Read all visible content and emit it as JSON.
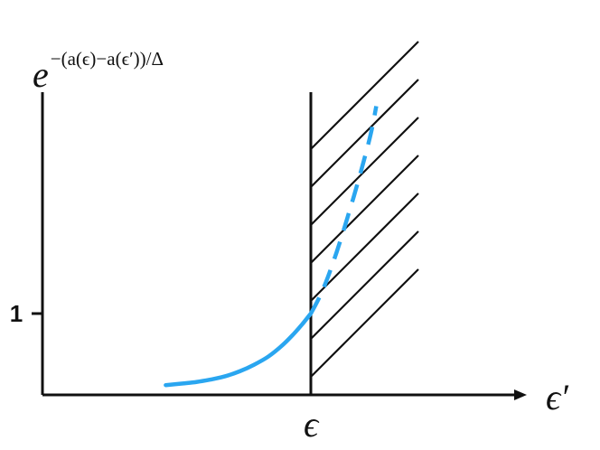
{
  "chart_data": {
    "type": "line",
    "title": "",
    "xlabel": "ϵ′",
    "ylabel_base": "e",
    "ylabel_exponent": "−(a(ϵ)−a(ϵ′))/Δ",
    "x_marker_label": "ϵ",
    "y_ticks": [
      {
        "value": 1,
        "label": "1"
      }
    ],
    "ylim": [
      0,
      4
    ],
    "grid": false,
    "legend": "none",
    "colors": {
      "curve": "#2aa6f0",
      "axes": "#111111",
      "hatch": "#111111"
    },
    "series": [
      {
        "style": "solid",
        "x": [
          -5.1,
          -4.5,
          -4.0,
          -3.5,
          -3.0,
          -2.5,
          -2.0,
          -1.5,
          -1.0,
          -0.6,
          -0.3,
          0.0
        ],
        "y": [
          0.12,
          0.14,
          0.16,
          0.19,
          0.23,
          0.29,
          0.37,
          0.47,
          0.61,
          0.75,
          0.87,
          1.0
        ]
      },
      {
        "style": "dashed",
        "x": [
          0.0,
          0.3,
          0.6,
          0.9,
          1.2,
          1.5,
          1.8,
          2.1,
          2.3
        ],
        "y": [
          1.0,
          1.2,
          1.45,
          1.75,
          2.08,
          2.43,
          2.8,
          3.2,
          3.55
        ]
      }
    ],
    "forbidden_region": {
      "from_x": 0,
      "hatched": true
    }
  }
}
